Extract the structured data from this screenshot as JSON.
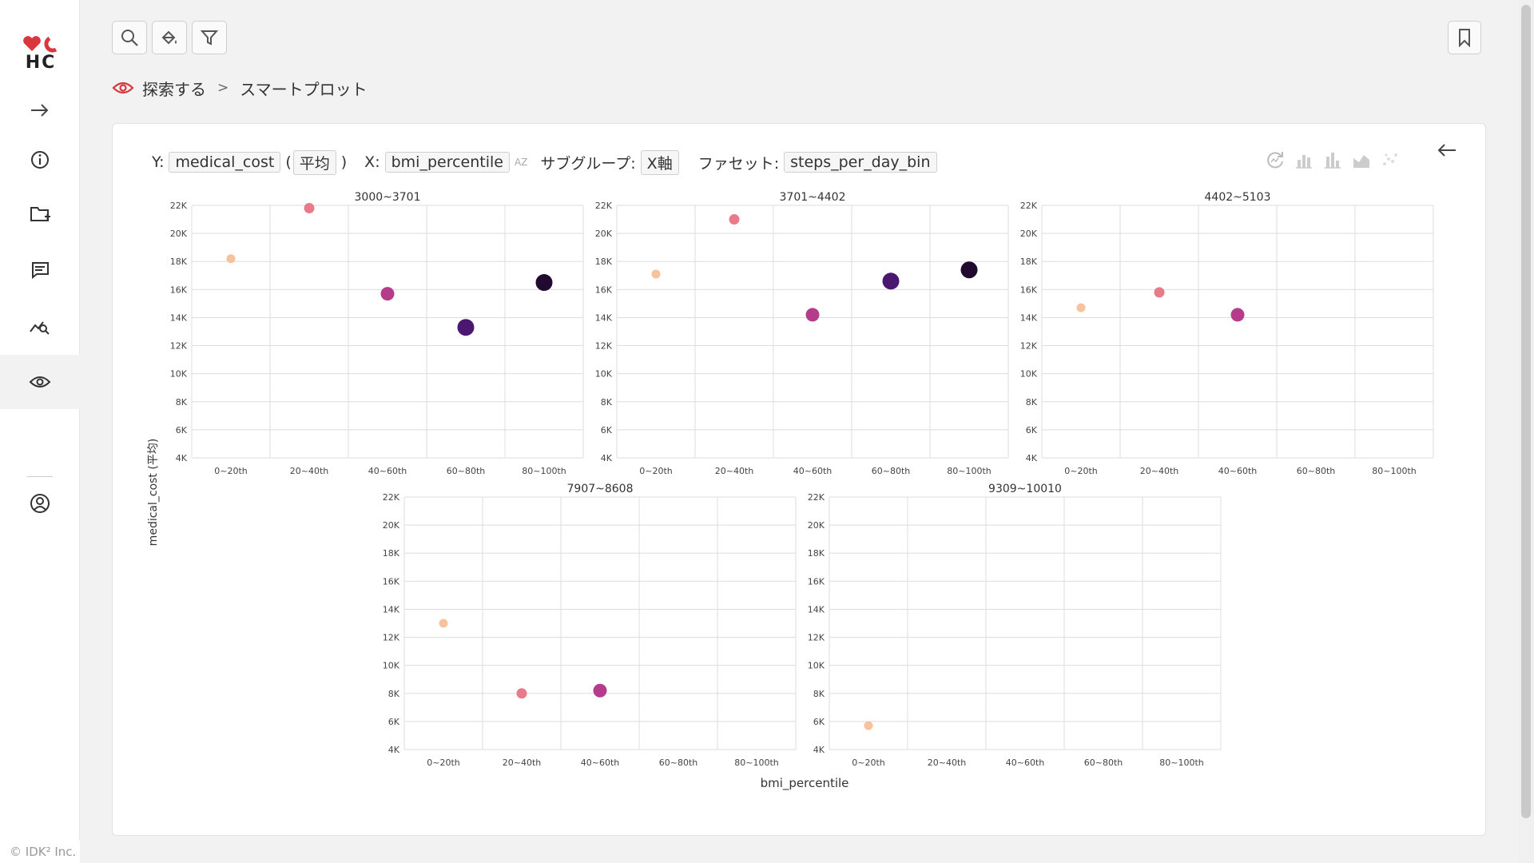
{
  "app": {
    "logo_text": "HC",
    "copyright": "© IDK² Inc."
  },
  "sidebar": {
    "items": [
      {
        "icon": "arrow-right-icon",
        "active": false
      },
      {
        "icon": "info-icon",
        "active": false
      },
      {
        "icon": "folder-plus-icon",
        "active": false
      },
      {
        "icon": "chat-icon",
        "active": false
      },
      {
        "icon": "chart-search-icon",
        "active": false
      },
      {
        "icon": "eye-icon",
        "active": true
      },
      {
        "icon": "user-circle-icon",
        "active": false
      }
    ]
  },
  "toolbar": {
    "buttons": [
      "search-icon",
      "paint-bucket-icon",
      "filter-icon"
    ],
    "bookmark": "bookmark-icon"
  },
  "breadcrumb": {
    "parent": "探索する",
    "separator": ">",
    "current": "スマートプロット"
  },
  "config": {
    "y_label": "Y:",
    "y_value": "medical_cost",
    "y_agg": "平均",
    "x_label": "X:",
    "x_value": "bmi_percentile",
    "x_sort": "AZ",
    "subgroup_label": "サブグループ:",
    "subgroup_value": "X軸",
    "facet_label": "ファセット:",
    "facet_value": "steps_per_day_bin"
  },
  "colors": {
    "accent": "#d9363e",
    "grid": "#dddddd"
  },
  "chart_data": {
    "type": "scatter",
    "xlabel": "bmi_percentile",
    "ylabel": "medical_cost (平均)",
    "categories": [
      "0~20th",
      "20~40th",
      "40~60th",
      "60~80th",
      "80~100th"
    ],
    "ylim": [
      4000,
      22000
    ],
    "y_ticks": [
      "4K",
      "6K",
      "8K",
      "10K",
      "12K",
      "14K",
      "16K",
      "18K",
      "20K",
      "22K"
    ],
    "category_colors": [
      "#f6c39e",
      "#e87a8a",
      "#b43c8a",
      "#4a1870",
      "#200a30"
    ],
    "facets": [
      {
        "title": "3000~3701",
        "points": [
          {
            "x": "0~20th",
            "y": 18200
          },
          {
            "x": "20~40th",
            "y": 21800
          },
          {
            "x": "40~60th",
            "y": 15700
          },
          {
            "x": "60~80th",
            "y": 13300
          },
          {
            "x": "80~100th",
            "y": 16500
          }
        ]
      },
      {
        "title": "3701~4402",
        "points": [
          {
            "x": "0~20th",
            "y": 17100
          },
          {
            "x": "20~40th",
            "y": 21000
          },
          {
            "x": "40~60th",
            "y": 14200
          },
          {
            "x": "60~80th",
            "y": 16600
          },
          {
            "x": "80~100th",
            "y": 17400
          }
        ]
      },
      {
        "title": "4402~5103",
        "points": [
          {
            "x": "0~20th",
            "y": 14700
          },
          {
            "x": "20~40th",
            "y": 15800
          },
          {
            "x": "40~60th",
            "y": 14200
          }
        ]
      },
      {
        "title": "7907~8608",
        "points": [
          {
            "x": "0~20th",
            "y": 13000
          },
          {
            "x": "20~40th",
            "y": 8000
          },
          {
            "x": "40~60th",
            "y": 8200
          }
        ]
      },
      {
        "title": "9309~10010",
        "points": [
          {
            "x": "0~20th",
            "y": 5700
          }
        ]
      }
    ]
  }
}
